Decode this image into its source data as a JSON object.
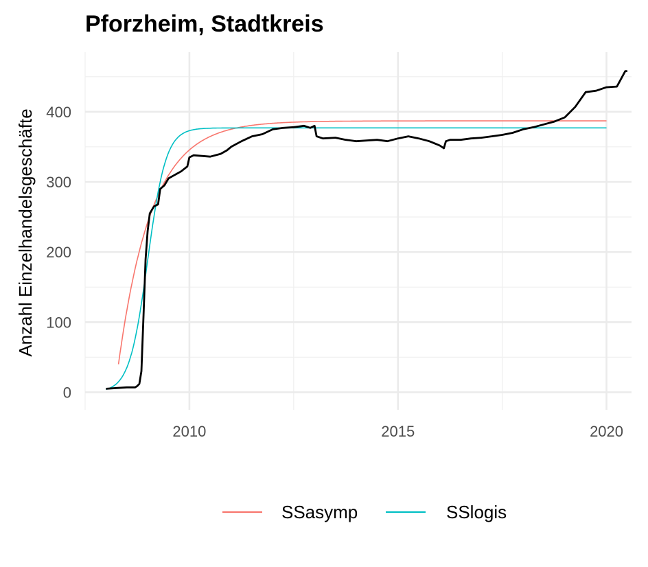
{
  "chart_data": {
    "type": "line",
    "title": "Pforzheim, Stadtkreis",
    "xlabel": "",
    "ylabel": "Anzahl Einzelhandelsgeschäfte",
    "xlim": [
      2007.5,
      2020.6
    ],
    "ylim": [
      -25,
      485
    ],
    "x_ticks": [
      2010,
      2015,
      2020
    ],
    "x_tick_labels": [
      "2010",
      "2015",
      "2020"
    ],
    "y_ticks": [
      0,
      100,
      200,
      300,
      400
    ],
    "y_tick_labels": [
      "0",
      "100",
      "200",
      "300",
      "400"
    ],
    "grid": true,
    "legend_position": "bottom",
    "observed": {
      "color": "#000000",
      "points": [
        [
          2008.0,
          5
        ],
        [
          2008.25,
          6
        ],
        [
          2008.5,
          7
        ],
        [
          2008.7,
          7
        ],
        [
          2008.75,
          9
        ],
        [
          2008.8,
          12
        ],
        [
          2008.85,
          30
        ],
        [
          2008.9,
          110
        ],
        [
          2008.95,
          190
        ],
        [
          2009.0,
          230
        ],
        [
          2009.05,
          255
        ],
        [
          2009.15,
          265
        ],
        [
          2009.25,
          268
        ],
        [
          2009.3,
          290
        ],
        [
          2009.4,
          295
        ],
        [
          2009.5,
          305
        ],
        [
          2009.65,
          310
        ],
        [
          2009.8,
          315
        ],
        [
          2009.95,
          322
        ],
        [
          2010.0,
          335
        ],
        [
          2010.1,
          338
        ],
        [
          2010.3,
          337
        ],
        [
          2010.5,
          336
        ],
        [
          2010.75,
          340
        ],
        [
          2010.9,
          345
        ],
        [
          2011.0,
          350
        ],
        [
          2011.25,
          358
        ],
        [
          2011.5,
          365
        ],
        [
          2011.75,
          368
        ],
        [
          2012.0,
          375
        ],
        [
          2012.25,
          377
        ],
        [
          2012.5,
          378
        ],
        [
          2012.75,
          380
        ],
        [
          2012.9,
          377
        ],
        [
          2013.0,
          380
        ],
        [
          2013.05,
          365
        ],
        [
          2013.2,
          362
        ],
        [
          2013.5,
          363
        ],
        [
          2013.75,
          360
        ],
        [
          2014.0,
          358
        ],
        [
          2014.25,
          359
        ],
        [
          2014.5,
          360
        ],
        [
          2014.75,
          358
        ],
        [
          2015.0,
          362
        ],
        [
          2015.25,
          365
        ],
        [
          2015.5,
          362
        ],
        [
          2015.75,
          358
        ],
        [
          2016.0,
          352
        ],
        [
          2016.1,
          348
        ],
        [
          2016.15,
          358
        ],
        [
          2016.25,
          360
        ],
        [
          2016.5,
          360
        ],
        [
          2016.75,
          362
        ],
        [
          2017.0,
          363
        ],
        [
          2017.25,
          365
        ],
        [
          2017.5,
          367
        ],
        [
          2017.75,
          370
        ],
        [
          2018.0,
          375
        ],
        [
          2018.25,
          378
        ],
        [
          2018.5,
          382
        ],
        [
          2018.75,
          386
        ],
        [
          2019.0,
          392
        ],
        [
          2019.25,
          407
        ],
        [
          2019.5,
          428
        ],
        [
          2019.75,
          430
        ],
        [
          2020.0,
          435
        ],
        [
          2020.25,
          436
        ],
        [
          2020.45,
          458
        ],
        [
          2020.5,
          458
        ]
      ]
    },
    "series": [
      {
        "name": "SSasymp",
        "color": "#F8766D",
        "model": "asymptotic",
        "asym": 387,
        "start_x": 2008.3,
        "start_y": 40,
        "rate": 1.25,
        "x_end": 2020.0
      },
      {
        "name": "SSlogis",
        "color": "#00BFC4",
        "model": "logistic",
        "asym": 377,
        "xmid": 2009.0,
        "scale": 0.22,
        "x_start": 2008.0,
        "x_end": 2020.0
      }
    ]
  }
}
